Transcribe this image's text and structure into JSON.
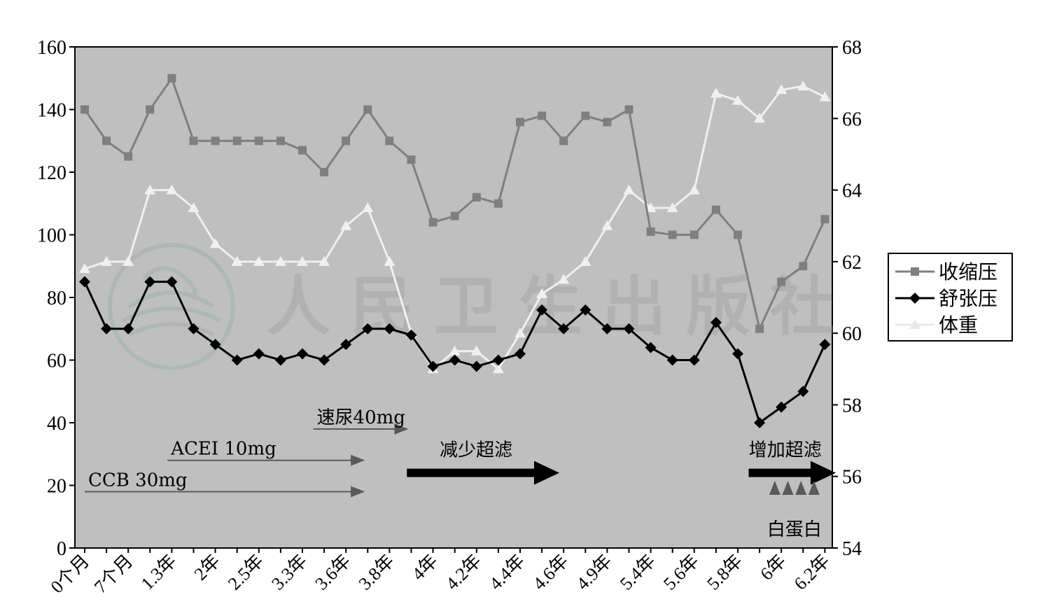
{
  "chart_data": {
    "type": "line",
    "categories": [
      "0个月",
      "",
      "7个月",
      "",
      "1.3年",
      "",
      "2年",
      "",
      "2.5年",
      "",
      "3.3年",
      "",
      "3.6年",
      "",
      "3.8年",
      "",
      "4年",
      "",
      "4.2年",
      "",
      "4.4年",
      "",
      "4.6年",
      "",
      "4.9年",
      "",
      "5.4年",
      "",
      "5.6年",
      "",
      "5.8年",
      "",
      "6年",
      "",
      "6.2年"
    ],
    "series": [
      {
        "name": "收缩压",
        "axis": "left",
        "marker": "square",
        "color": "#7f7f7f",
        "values": [
          140,
          130,
          125,
          140,
          150,
          130,
          130,
          130,
          130,
          130,
          127,
          120,
          130,
          140,
          130,
          124,
          104,
          106,
          112,
          110,
          136,
          138,
          130,
          138,
          136,
          140,
          101,
          100,
          100,
          108,
          100,
          70,
          85,
          90,
          105
        ]
      },
      {
        "name": "舒张压",
        "axis": "left",
        "marker": "diamond",
        "color": "#000000",
        "values": [
          85,
          70,
          70,
          85,
          85,
          70,
          65,
          60,
          62,
          60,
          62,
          60,
          65,
          70,
          70,
          68,
          58,
          60,
          58,
          60,
          62,
          76,
          70,
          76,
          70,
          70,
          64,
          60,
          60,
          72,
          62,
          40,
          45,
          50,
          65
        ]
      },
      {
        "name": "体重",
        "axis": "right",
        "marker": "triangle",
        "color": "#f0f0f0",
        "values": [
          61.8,
          62,
          62,
          64,
          64,
          63.5,
          62.5,
          62,
          62,
          62,
          62,
          62,
          63,
          63.5,
          62,
          60,
          59,
          59.5,
          59.5,
          59,
          60,
          61.1,
          61.5,
          62,
          63,
          64,
          63.5,
          63.5,
          64,
          66.7,
          66.5,
          66,
          66.8,
          66.9,
          66.6
        ]
      }
    ],
    "y_left": {
      "min": 0,
      "max": 160,
      "ticks": [
        0,
        20,
        40,
        60,
        80,
        100,
        120,
        140,
        160
      ]
    },
    "y_right": {
      "min": 54,
      "max": 68,
      "ticks": [
        54,
        56,
        58,
        60,
        62,
        64,
        66,
        68
      ]
    },
    "grid": false,
    "legend_position": "right",
    "background": "#bfbfbf",
    "annotations": {
      "ccb": {
        "label": "CCB 30mg",
        "from": 0,
        "to": 12.8,
        "y": 18
      },
      "acei": {
        "label": "ACEI 10mg",
        "from": 3.8,
        "to": 12.8,
        "y": 28
      },
      "diuretic": {
        "label": "速尿40mg",
        "from": 10.5,
        "to": 14.8,
        "y": 38
      },
      "reduce_uf": {
        "label": "减少超滤",
        "from": 14.8,
        "to": 21.8,
        "y": 24
      },
      "increase_uf": {
        "label": "增加超滤",
        "from": 30.5,
        "to": 34.5,
        "y": 24
      },
      "albumin": {
        "label": "白蛋白",
        "positions": [
          31.7,
          32.3,
          32.9,
          33.5
        ]
      }
    }
  },
  "watermark": "人民卫生出版社"
}
